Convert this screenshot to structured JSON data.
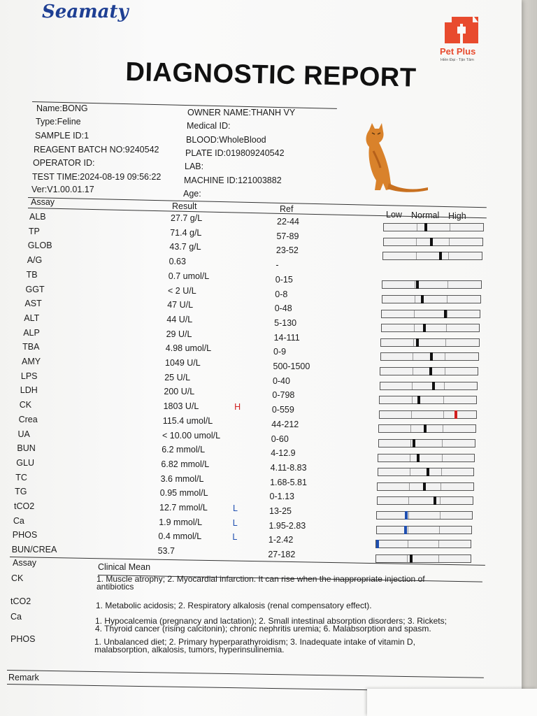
{
  "header": {
    "logo": "Seamaty",
    "title": "DIAGNOSTIC REPORT",
    "clinic_name": "Pet Plus",
    "clinic_sub": "Hiền Đại - Tận Tâm",
    "brand_color": "#e84b2e",
    "logo_color": "#1e3f93"
  },
  "patient": {
    "name": "Name:BONG",
    "type": "Type:Feline",
    "sample_id": "SAMPLE ID:1",
    "reagent_batch": "REAGENT BATCH NO:9240542",
    "operator": "OPERATOR ID:",
    "test_time": "TEST TIME:2024-08-19 09:56:22",
    "version": "Ver:V1.00.01.17",
    "owner": "OWNER NAME:THANH VY",
    "medical_id": "Medical ID:",
    "blood": "BLOOD:WholeBlood",
    "plate": "PLATE ID:019809240542",
    "lab": "LAB:",
    "machine": "MACHINE ID:121003882",
    "age": "Age:"
  },
  "columns": {
    "assay": "Assay",
    "result": "Result",
    "ref": "Ref",
    "low": "Low",
    "normal": "Normal",
    "high": "High"
  },
  "rows": [
    {
      "assay": "ALB",
      "result": "27.7 g/L",
      "flag": "",
      "ref": "22-44",
      "level": 0.42,
      "bar": true
    },
    {
      "assay": "TP",
      "result": "71.4 g/L",
      "flag": "",
      "ref": "57-89",
      "level": 0.48,
      "bar": true
    },
    {
      "assay": "GLOB",
      "result": "43.7 g/L",
      "flag": "",
      "ref": "23-52",
      "level": 0.58,
      "bar": true
    },
    {
      "assay": "A/G",
      "result": "0.63",
      "flag": "",
      "ref": "-",
      "level": null,
      "bar": false
    },
    {
      "assay": "TB",
      "result": "0.7 umol/L",
      "flag": "",
      "ref": "0-15",
      "level": 0.35,
      "bar": true
    },
    {
      "assay": "GGT",
      "result": "< 2 U/L",
      "flag": "",
      "ref": "0-8",
      "level": 0.41,
      "bar": true
    },
    {
      "assay": "AST",
      "result": "47 U/L",
      "flag": "",
      "ref": "0-48",
      "level": 0.65,
      "bar": true
    },
    {
      "assay": "ALT",
      "result": "44 U/L",
      "flag": "",
      "ref": "5-130",
      "level": 0.44,
      "bar": true
    },
    {
      "assay": "ALP",
      "result": "29 U/L",
      "flag": "",
      "ref": "14-111",
      "level": 0.37,
      "bar": true
    },
    {
      "assay": "TBA",
      "result": "4.98 umol/L",
      "flag": "",
      "ref": "0-9",
      "level": 0.52,
      "bar": true
    },
    {
      "assay": "AMY",
      "result": "1049 U/L",
      "flag": "",
      "ref": "500-1500",
      "level": 0.52,
      "bar": true
    },
    {
      "assay": "LPS",
      "result": "25 U/L",
      "flag": "",
      "ref": "0-40",
      "level": 0.55,
      "bar": true
    },
    {
      "assay": "LDH",
      "result": "200 U/L",
      "flag": "",
      "ref": "0-798",
      "level": 0.4,
      "bar": true
    },
    {
      "assay": "CK",
      "result": "1803 U/L",
      "flag": "H",
      "ref": "0-559",
      "level": 0.8,
      "bar": true
    },
    {
      "assay": "Crea",
      "result": "115.4 umol/L",
      "flag": "",
      "ref": "44-212",
      "level": 0.48,
      "bar": true
    },
    {
      "assay": "UA",
      "result": "< 10.00 umol/L",
      "flag": "",
      "ref": "0-60",
      "level": 0.36,
      "bar": true
    },
    {
      "assay": "BUN",
      "result": "6.2 mmol/L",
      "flag": "",
      "ref": "4-12.9",
      "level": 0.41,
      "bar": true
    },
    {
      "assay": "GLU",
      "result": "6.82 mmol/L",
      "flag": "",
      "ref": "4.11-8.83",
      "level": 0.52,
      "bar": true
    },
    {
      "assay": "TC",
      "result": "3.6 mmol/L",
      "flag": "",
      "ref": "1.68-5.81",
      "level": 0.49,
      "bar": true
    },
    {
      "assay": "TG",
      "result": "0.95 mmol/L",
      "flag": "",
      "ref": "0-1.13",
      "level": 0.61,
      "bar": true
    },
    {
      "assay": "tCO2",
      "result": "12.7 mmol/L",
      "flag": "L",
      "ref": "13-25",
      "level": 0.3,
      "bar": true
    },
    {
      "assay": "Ca",
      "result": "1.9 mmol/L",
      "flag": "L",
      "ref": "1.95-2.83",
      "level": 0.3,
      "bar": true
    },
    {
      "assay": "PHOS",
      "result": "0.4 mmol/L",
      "flag": "L",
      "ref": "1-2.42",
      "level": 0.0,
      "bar": true
    },
    {
      "assay": "BUN/CREA",
      "result": "53.7",
      "flag": "",
      "ref": "27-182",
      "level": 0.37,
      "bar": true
    }
  ],
  "flag_colors": {
    "H": "#d02020",
    "L": "#1f4fb0",
    "normal": "#111111"
  },
  "clinical": {
    "assay_header": "Assay",
    "mean_header": "Clinical Mean",
    "items": [
      {
        "assay": "CK",
        "lines": [
          "1. Muscle atrophy; 2. Myocardial infarction. It can rise when the inappropriate injection of",
          "antibiotics"
        ]
      },
      {
        "assay": "tCO2",
        "lines": [
          "1. Metabolic acidosis; 2. Respiratory alkalosis (renal compensatory effect)."
        ]
      },
      {
        "assay": "Ca",
        "lines": [
          "1. Hypocalcemia (pregnancy and lactation); 2. Small intestinal absorption disorders; 3. Rickets;",
          "4. Thyroid cancer (rising calcitonin); chronic nephritis uremia; 6. Malabsorption and spasm."
        ]
      },
      {
        "assay": "PHOS",
        "lines": [
          "1. Unbalanced diet; 2. Primary hyperparathyroidism; 3. Inadequate intake of vitamin D,",
          "malabsorption, alkalosis, tumors, hyperinsulinemia."
        ]
      }
    ],
    "remark": "Remark"
  }
}
